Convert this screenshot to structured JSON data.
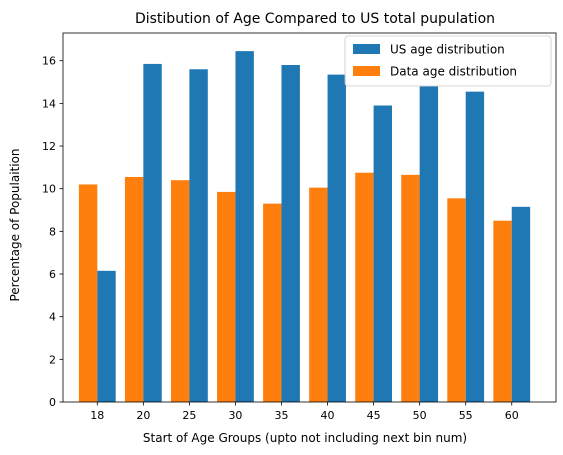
{
  "chart_data": {
    "type": "bar",
    "title": "Distibution of Age Compared to US total pupulation",
    "xlabel": "Start of Age Groups (upto not including next bin num)",
    "ylabel": "Percentage of Populaition",
    "categories": [
      "18",
      "20",
      "25",
      "30",
      "35",
      "40",
      "45",
      "50",
      "55",
      "60"
    ],
    "ylim": [
      0,
      17.3
    ],
    "yticks": [
      0,
      2,
      4,
      6,
      8,
      10,
      12,
      14,
      16
    ],
    "grid": false,
    "legend_position": "top-right",
    "series": [
      {
        "name": "US age distribution",
        "color": "#1f77b4",
        "values": [
          6.15,
          15.85,
          15.6,
          16.45,
          15.8,
          15.35,
          13.9,
          14.8,
          14.55,
          9.15
        ]
      },
      {
        "name": "Data age distribution",
        "color": "#ff7f0e",
        "values": [
          10.2,
          10.55,
          10.4,
          9.85,
          9.3,
          10.05,
          10.75,
          10.65,
          9.55,
          8.5
        ]
      }
    ]
  }
}
